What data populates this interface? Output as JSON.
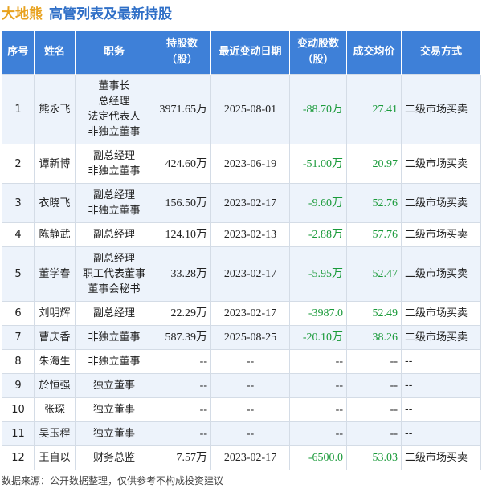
{
  "header": {
    "brand": "大地熊",
    "title": "高管列表及最新持股"
  },
  "table": {
    "columns": [
      "序号",
      "姓名",
      "职务",
      "持股数\n（股）",
      "最近变动日期",
      "变动股数\n（股）",
      "成交均价",
      "交易方式"
    ],
    "rows": [
      [
        "1",
        "熊永飞",
        [
          "董事长",
          "总经理",
          "法定代表人",
          "非独立董事"
        ],
        "3971.65万",
        "2025-08-01",
        "-88.70万",
        "27.41",
        "二级市场买卖"
      ],
      [
        "2",
        "谭新博",
        [
          "副总经理",
          "非独立董事"
        ],
        "424.60万",
        "2023-06-19",
        "-51.00万",
        "20.97",
        "二级市场买卖"
      ],
      [
        "3",
        "衣晓飞",
        [
          "副总经理",
          "非独立董事"
        ],
        "156.50万",
        "2023-02-17",
        "-9.60万",
        "52.76",
        "二级市场买卖"
      ],
      [
        "4",
        "陈静武",
        [
          "副总经理"
        ],
        "124.10万",
        "2023-02-13",
        "-2.88万",
        "57.76",
        "二级市场买卖"
      ],
      [
        "5",
        "董学春",
        [
          "副总经理",
          "职工代表董事",
          "董事会秘书"
        ],
        "33.28万",
        "2023-02-17",
        "-5.95万",
        "52.47",
        "二级市场买卖"
      ],
      [
        "6",
        "刘明辉",
        [
          "副总经理"
        ],
        "22.29万",
        "2023-02-17",
        "-3987.0",
        "52.49",
        "二级市场买卖"
      ],
      [
        "7",
        "曹庆香",
        [
          "非独立董事"
        ],
        "587.39万",
        "2025-08-25",
        "-20.10万",
        "38.26",
        "二级市场买卖"
      ],
      [
        "8",
        "朱海生",
        [
          "非独立董事"
        ],
        "--",
        "--",
        "--",
        "--",
        "--"
      ],
      [
        "9",
        "於恒强",
        [
          "独立董事"
        ],
        "--",
        "--",
        "--",
        "--",
        "--"
      ],
      [
        "10",
        "张琛",
        [
          "独立董事"
        ],
        "--",
        "--",
        "--",
        "--",
        "--"
      ],
      [
        "11",
        "吴玉程",
        [
          "独立董事"
        ],
        "--",
        "--",
        "--",
        "--",
        "--"
      ],
      [
        "12",
        "王自以",
        [
          "财务总监"
        ],
        "7.57万",
        "2023-02-17",
        "-6500.0",
        "53.03",
        "二级市场买卖"
      ]
    ]
  },
  "footer": "数据来源：公开数据整理，仅供参考不构成投资建议"
}
